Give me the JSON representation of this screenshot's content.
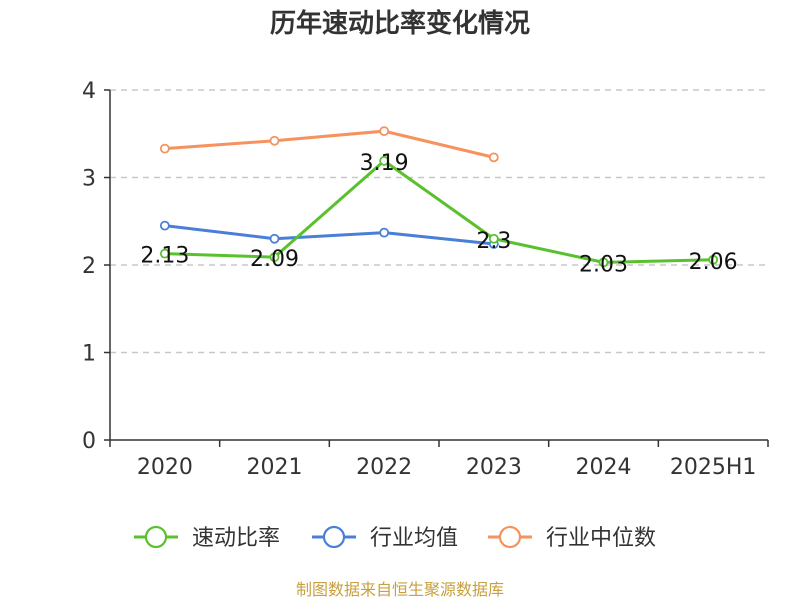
{
  "chart_data": {
    "type": "line",
    "title": "历年速动比率变化情况",
    "categories": [
      "2020",
      "2021",
      "2022",
      "2023",
      "2024",
      "2025H1"
    ],
    "y_ticks": [
      "0",
      "1",
      "2",
      "3",
      "4"
    ],
    "ylim": [
      0,
      4
    ],
    "grid": true,
    "legend_position": "bottom",
    "series": [
      {
        "name": "速动比率",
        "color": "#5ac12e",
        "values": [
          2.13,
          2.09,
          3.19,
          2.3,
          2.03,
          2.06
        ],
        "labels": [
          "2.13",
          "2.09",
          "3.19",
          "2.3",
          "2.03",
          "2.06"
        ]
      },
      {
        "name": "行业均值",
        "color": "#4a7fd8",
        "values": [
          2.45,
          2.3,
          2.37,
          2.24,
          null,
          null
        ]
      },
      {
        "name": "行业中位数",
        "color": "#f5925e",
        "values": [
          3.33,
          3.42,
          3.53,
          3.23,
          null,
          null
        ]
      }
    ]
  },
  "source_text": "制图数据来自恒生聚源数据库"
}
